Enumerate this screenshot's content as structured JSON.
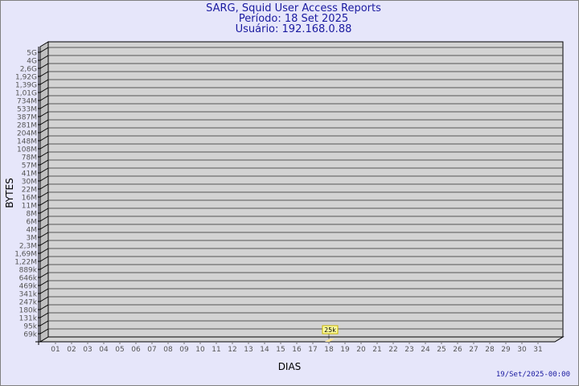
{
  "header": {
    "title": "SARG, Squid User Access Reports",
    "period": "Período: 18 Set 2025",
    "user": "Usuário: 192.168.0.88"
  },
  "footer": {
    "timestamp": "19/Set/2025-00:00"
  },
  "colors": {
    "background": "#e6e6fa",
    "plot": "#d3d3d3",
    "title": "#1a1aa0",
    "bar": "#ffe89a",
    "label_box": "#ffffa0"
  },
  "chart_data": {
    "type": "bar",
    "xlabel": "DIAS",
    "ylabel": "BYTES",
    "y_scale": "log",
    "grid": true,
    "y_ticks": [
      "5G",
      "4G",
      "2,6G",
      "1,92G",
      "1,39G",
      "1,01G",
      "734M",
      "533M",
      "387M",
      "281M",
      "204M",
      "148M",
      "108M",
      "78M",
      "57M",
      "41M",
      "30M",
      "22M",
      "16M",
      "11M",
      "8M",
      "6M",
      "4M",
      "3M",
      "2,3M",
      "1,69M",
      "1,22M",
      "889k",
      "646k",
      "469k",
      "341k",
      "247k",
      "180k",
      "131k",
      "95k",
      "69k"
    ],
    "categories": [
      "01",
      "02",
      "03",
      "04",
      "05",
      "06",
      "07",
      "08",
      "09",
      "10",
      "11",
      "12",
      "13",
      "14",
      "15",
      "16",
      "17",
      "18",
      "19",
      "20",
      "21",
      "22",
      "23",
      "24",
      "25",
      "26",
      "27",
      "28",
      "29",
      "30",
      "31"
    ],
    "values": [
      null,
      null,
      null,
      null,
      null,
      null,
      null,
      null,
      null,
      null,
      null,
      null,
      null,
      null,
      null,
      null,
      null,
      25000,
      null,
      null,
      null,
      null,
      null,
      null,
      null,
      null,
      null,
      null,
      null,
      null,
      null
    ],
    "data_labels": {
      "18": "25k"
    }
  }
}
